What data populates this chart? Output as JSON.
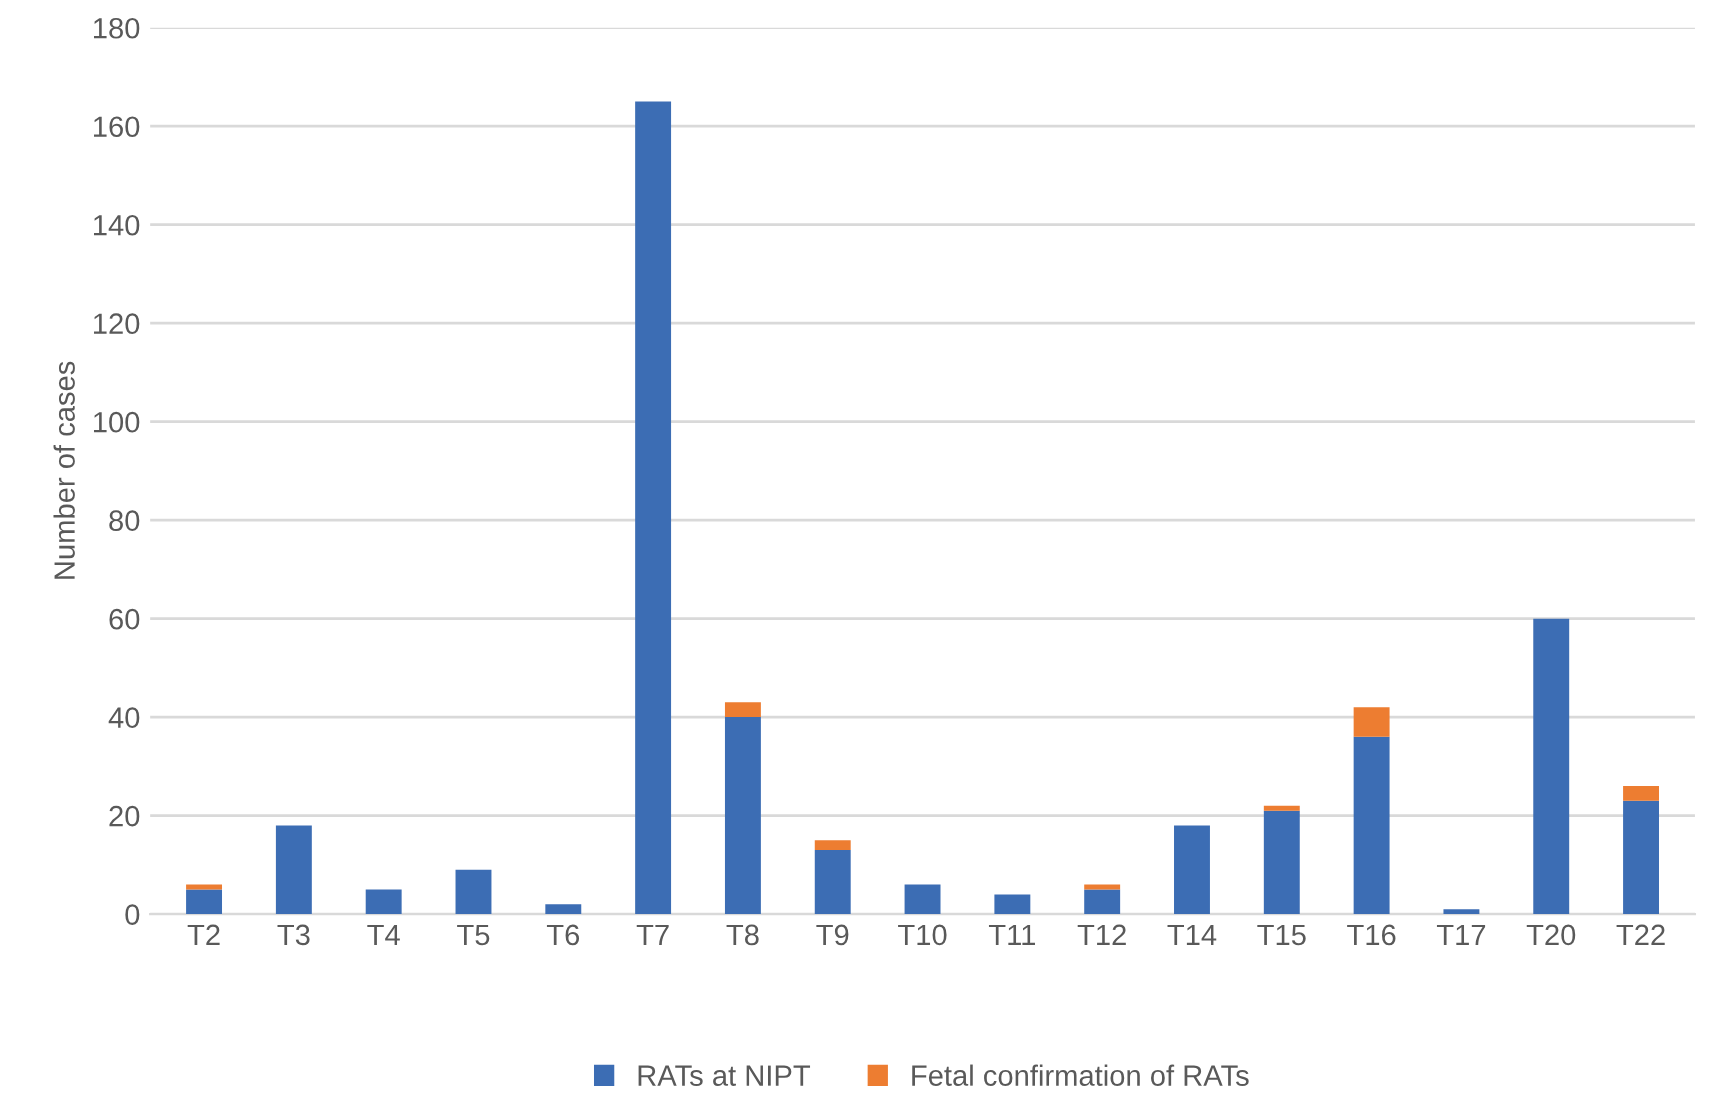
{
  "chart_data": {
    "type": "bar",
    "stacked": true,
    "ylabel": "Number of cases",
    "categories": [
      "T2",
      "T3",
      "T4",
      "T5",
      "T6",
      "T7",
      "T8",
      "T9",
      "T10",
      "T11",
      "T12",
      "T14",
      "T15",
      "T16",
      "T17",
      "T20",
      "T22"
    ],
    "series": [
      {
        "name": "RATs at NIPT",
        "color": "#3c6db4",
        "values": [
          5,
          18,
          5,
          9,
          2,
          165,
          40,
          13,
          6,
          4,
          5,
          18,
          21,
          36,
          1,
          60,
          23
        ]
      },
      {
        "name": "Fetal confirmation of RATs",
        "color": "#ed7d31",
        "values": [
          1,
          0,
          0,
          0,
          0,
          0,
          3,
          2,
          0,
          0,
          1,
          0,
          1,
          6,
          0,
          0,
          3
        ]
      }
    ],
    "ylim": [
      0,
      180
    ],
    "yticks": [
      0,
      20,
      40,
      60,
      80,
      100,
      120,
      140,
      160,
      180
    ],
    "grid": "y",
    "legend": "bottom"
  }
}
